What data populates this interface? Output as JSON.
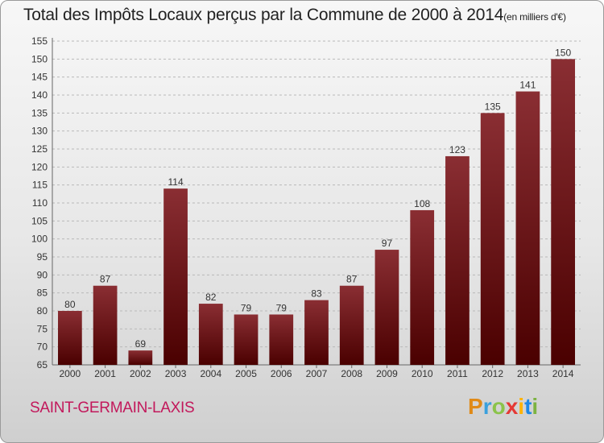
{
  "chart_data": {
    "type": "bar",
    "title": "Total des Impôts Locaux perçus par la Commune de 2000 à 2014",
    "unit_label": "(en milliers d'€)",
    "categories": [
      "2000",
      "2001",
      "2002",
      "2003",
      "2004",
      "2005",
      "2006",
      "2007",
      "2008",
      "2009",
      "2010",
      "2011",
      "2012",
      "2013",
      "2014"
    ],
    "values": [
      80,
      87,
      69,
      114,
      82,
      79,
      79,
      83,
      87,
      97,
      108,
      123,
      135,
      141,
      150
    ],
    "ylim": [
      65,
      155
    ],
    "ytick_step": 5,
    "xlabel": "",
    "ylabel": "",
    "grid": true,
    "bar_color_top": "#8a2e33",
    "bar_color_bottom": "#4a0000"
  },
  "commune_name": "SAINT-GERMAIN-LAXIS",
  "logo": {
    "letters": [
      "P",
      "r",
      "o",
      "x",
      "i",
      "t",
      "i"
    ]
  }
}
